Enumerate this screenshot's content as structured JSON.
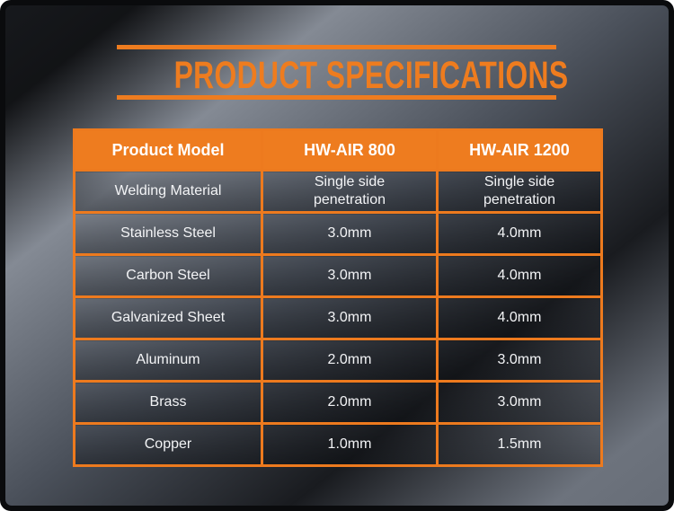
{
  "page": {
    "title": "PRODUCT SPECIFICATIONS"
  },
  "theme": {
    "accent_orange": "#EE7C1F",
    "table_border_orange": "#ED7A1E",
    "header_text_color": "#FFFFFF",
    "cell_text_color": "#F3F4F6",
    "frame_color": "#0A0B0D"
  },
  "table": {
    "headers": [
      "Product Model",
      "HW-AIR 800",
      "HW-AIR 1200"
    ],
    "rows": [
      [
        "Welding Material",
        "Single side\npenetration",
        "Single side\npenetration"
      ],
      [
        "Stainless Steel",
        "3.0mm",
        "4.0mm"
      ],
      [
        "Carbon Steel",
        "3.0mm",
        "4.0mm"
      ],
      [
        "Galvanized Sheet",
        "3.0mm",
        "4.0mm"
      ],
      [
        "Aluminum",
        "2.0mm",
        "3.0mm"
      ],
      [
        "Brass",
        "2.0mm",
        "3.0mm"
      ],
      [
        "Copper",
        "1.0mm",
        "1.5mm"
      ]
    ]
  }
}
